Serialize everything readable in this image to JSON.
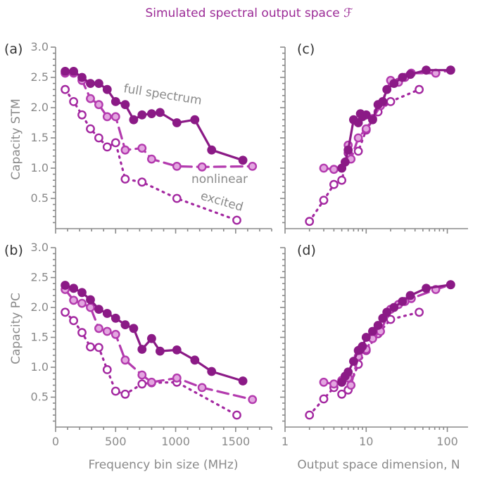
{
  "title": "Simulated spectral output space ℱ",
  "colors": {
    "full": "#8b1a86",
    "nonlinear": "#b33aae",
    "excited": "#a327a0",
    "full_fill": "#8b1a86",
    "nonlinear_fill": "#e3a6e0",
    "excited_fill": "#ffffff",
    "axis": "#8a8a8a"
  },
  "chart_data": [
    {
      "panel": "(a)",
      "type": "line",
      "ylabel": "Capacity STM",
      "xlabel": "",
      "xscale": "linear",
      "xlim": [
        0,
        1800
      ],
      "ylim": [
        0,
        3.0
      ],
      "xticks": [
        0,
        500,
        1000,
        1500
      ],
      "yticks": [
        "3.0",
        "2.5",
        "2.0",
        "1.5",
        "1.0",
        "0.5"
      ],
      "annotations": [
        "full spectrum",
        "nonlinear",
        "excited"
      ],
      "series": [
        {
          "key": "full",
          "x": [
            80,
            150,
            220,
            290,
            360,
            430,
            500,
            580,
            650,
            720,
            800,
            870,
            1010,
            1160,
            1300,
            1560
          ],
          "y": [
            2.6,
            2.6,
            2.5,
            2.4,
            2.4,
            2.3,
            2.1,
            2.05,
            1.8,
            1.88,
            1.9,
            1.92,
            1.75,
            1.8,
            1.3,
            1.13
          ]
        },
        {
          "key": "nonlinear",
          "x": [
            80,
            150,
            220,
            290,
            360,
            430,
            500,
            580,
            720,
            800,
            1010,
            1220,
            1640
          ],
          "y": [
            2.57,
            2.57,
            2.45,
            2.15,
            2.05,
            1.85,
            1.85,
            1.3,
            1.33,
            1.15,
            1.03,
            1.02,
            1.03
          ]
        },
        {
          "key": "excited",
          "x": [
            80,
            150,
            220,
            290,
            360,
            430,
            500,
            580,
            720,
            1010,
            1510
          ],
          "y": [
            2.3,
            2.1,
            1.88,
            1.65,
            1.5,
            1.35,
            1.42,
            0.82,
            0.77,
            0.5,
            0.14
          ]
        }
      ]
    },
    {
      "panel": "(b)",
      "type": "line",
      "ylabel": "Capacity PC",
      "xlabel": "Frequency bin size (MHz)",
      "xscale": "linear",
      "xlim": [
        0,
        1800
      ],
      "ylim": [
        0,
        3.0
      ],
      "xticks": [
        0,
        500,
        1000,
        1500
      ],
      "yticks": [
        "3.0",
        "2.5",
        "2.0",
        "1.5",
        "1.0",
        "0.5"
      ],
      "series": [
        {
          "key": "full",
          "x": [
            80,
            150,
            220,
            290,
            360,
            430,
            500,
            580,
            650,
            720,
            800,
            870,
            1010,
            1160,
            1300,
            1560
          ],
          "y": [
            2.37,
            2.32,
            2.25,
            2.13,
            1.97,
            1.9,
            1.82,
            1.71,
            1.65,
            1.3,
            1.48,
            1.27,
            1.29,
            1.12,
            0.93,
            0.77
          ]
        },
        {
          "key": "nonlinear",
          "x": [
            80,
            150,
            220,
            290,
            360,
            430,
            500,
            580,
            720,
            800,
            1010,
            1220,
            1640
          ],
          "y": [
            2.3,
            2.12,
            2.07,
            2.0,
            1.65,
            1.6,
            1.55,
            1.12,
            0.87,
            0.75,
            0.82,
            0.66,
            0.46
          ]
        },
        {
          "key": "excited",
          "x": [
            80,
            150,
            220,
            290,
            360,
            430,
            500,
            580,
            720,
            800,
            1010,
            1510
          ],
          "y": [
            1.92,
            1.78,
            1.58,
            1.34,
            1.33,
            0.96,
            0.6,
            0.55,
            0.72,
            0.74,
            0.75,
            0.2
          ]
        }
      ]
    },
    {
      "panel": "(c)",
      "type": "line",
      "ylabel": "",
      "xlabel": "",
      "xscale": "log",
      "xlim": [
        1,
        180
      ],
      "ylim": [
        0,
        3.0
      ],
      "xticks": [
        1,
        10,
        100
      ],
      "yticks": [],
      "series": [
        {
          "key": "full",
          "x": [
            5,
            5.5,
            6,
            7,
            8,
            8.5,
            9,
            10,
            12,
            14,
            16,
            18,
            22,
            28,
            35,
            55,
            110
          ],
          "y": [
            1.0,
            1.1,
            1.3,
            1.8,
            1.75,
            1.9,
            1.85,
            1.88,
            1.8,
            2.05,
            2.1,
            2.3,
            2.4,
            2.5,
            2.55,
            2.62,
            2.62
          ]
        },
        {
          "key": "nonlinear",
          "x": [
            3,
            4,
            5,
            6,
            6.5,
            8,
            10,
            12,
            15,
            20,
            25,
            30,
            36,
            72,
            110
          ],
          "y": [
            1.0,
            0.98,
            1.0,
            1.38,
            1.15,
            1.5,
            1.65,
            1.82,
            2.03,
            2.45,
            2.42,
            2.5,
            2.57,
            2.57,
            2.62
          ]
        },
        {
          "key": "excited",
          "x": [
            2,
            3,
            4,
            5,
            6,
            8,
            10,
            14,
            20,
            45
          ],
          "y": [
            0.12,
            0.47,
            0.73,
            0.8,
            1.25,
            1.28,
            1.63,
            1.93,
            2.1,
            2.3
          ]
        }
      ]
    },
    {
      "panel": "(d)",
      "type": "line",
      "ylabel": "",
      "xlabel": "Output space dimension, N",
      "xscale": "log",
      "xlim": [
        1,
        180
      ],
      "ylim": [
        0,
        3.0
      ],
      "xticks": [
        1,
        10,
        100
      ],
      "yticks": [],
      "series": [
        {
          "key": "full",
          "x": [
            5,
            5.5,
            6,
            7,
            8,
            8.5,
            9,
            10,
            12,
            14,
            16,
            18,
            22,
            28,
            35,
            55,
            110
          ],
          "y": [
            0.75,
            0.85,
            0.92,
            1.1,
            1.28,
            1.3,
            1.35,
            1.5,
            1.6,
            1.7,
            1.82,
            1.92,
            2.0,
            2.1,
            2.2,
            2.32,
            2.38
          ]
        },
        {
          "key": "nonlinear",
          "x": [
            3,
            4,
            5,
            6,
            6.5,
            8,
            10,
            12,
            15,
            20,
            25,
            30,
            36,
            72,
            110
          ],
          "y": [
            0.75,
            0.72,
            0.78,
            0.82,
            0.7,
            1.18,
            1.3,
            1.48,
            1.6,
            1.97,
            2.05,
            2.1,
            2.15,
            2.3,
            2.38
          ]
        },
        {
          "key": "excited",
          "x": [
            2,
            3,
            4,
            5,
            6,
            8,
            10,
            14,
            20,
            45
          ],
          "y": [
            0.2,
            0.47,
            0.66,
            0.55,
            0.62,
            1.05,
            1.28,
            1.56,
            1.8,
            1.92
          ]
        }
      ]
    }
  ],
  "styles": {
    "full": {
      "dash": "",
      "fill": "full_fill"
    },
    "nonlinear": {
      "dash": "16 8",
      "fill": "nonlinear_fill"
    },
    "excited": {
      "dash": "2 7",
      "fill": "excited_fill"
    }
  }
}
